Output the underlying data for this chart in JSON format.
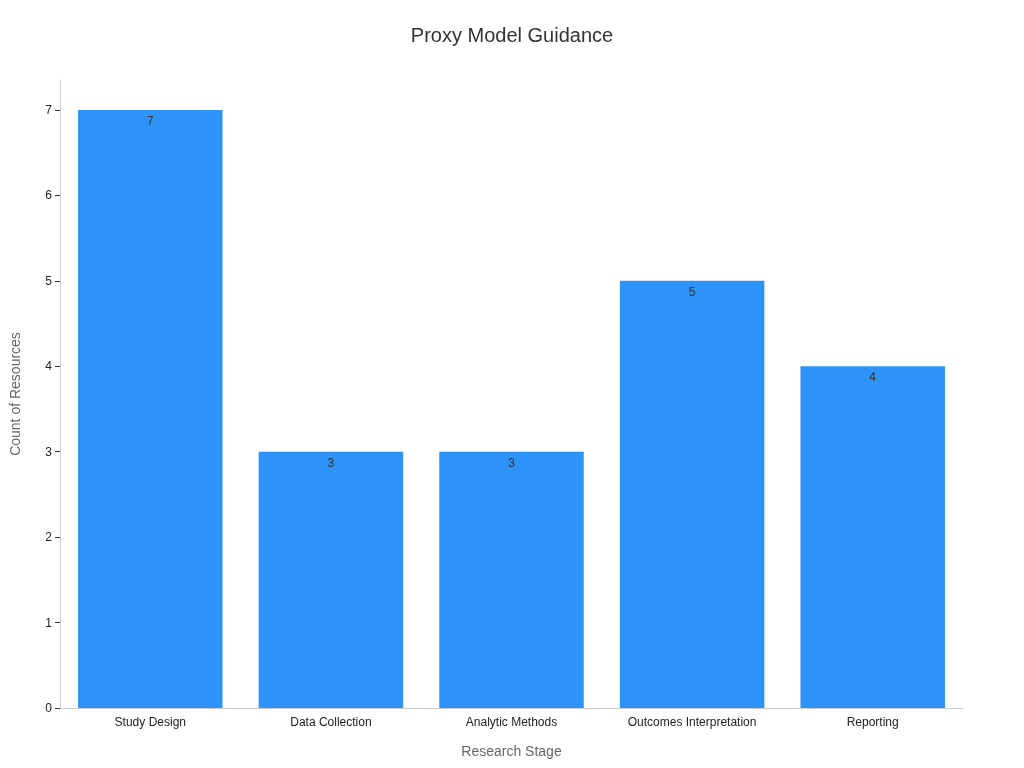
{
  "chart_data": {
    "type": "bar",
    "title": "Proxy Model Guidance",
    "xlabel": "Research Stage",
    "ylabel": "Count of Resources",
    "categories": [
      "Study Design",
      "Data Collection",
      "Analytic Methods",
      "Outcomes Interpretation",
      "Reporting"
    ],
    "values": [
      7,
      3,
      3,
      5,
      4
    ],
    "color": "#2e93f8",
    "ylim": [
      0,
      7.35
    ],
    "yticks": [
      0,
      1,
      2,
      3,
      4,
      5,
      6,
      7
    ],
    "grid": false,
    "data_labels": true
  }
}
